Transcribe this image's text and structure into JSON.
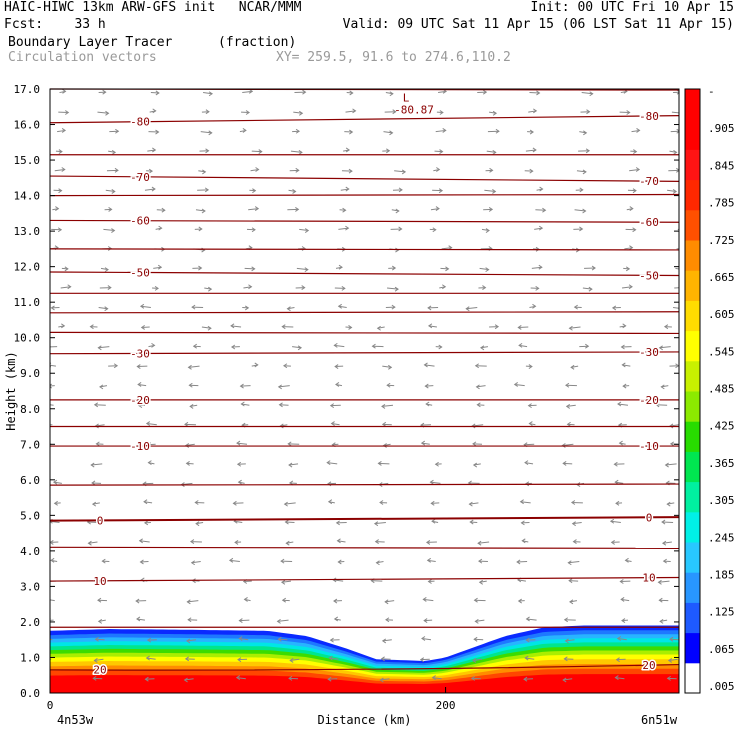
{
  "header": {
    "line1_left": "HAIC-HIWC 13km ARW-GFS init   NCAR/MMM",
    "line1_right": "Init: 00 UTC Fri 10 Apr 15",
    "line2_left": "Fcst:    33 h",
    "line2_right": "Valid: 09 UTC Sat 11 Apr 15 (06 LST Sat 11 Apr 15)",
    "field_name": "Boundary Layer Tracer",
    "field_units": "(fraction)",
    "vector_label": "Circulation vectors",
    "xy_label": "XY= 259.5, 91.6 to 274.6,110.2"
  },
  "chart_data": {
    "type": "cross-section",
    "xlabel": "Distance (km)",
    "ylabel": "Height (km)",
    "xlim": [
      0,
      318
    ],
    "ylim": [
      0,
      17
    ],
    "x_tick_values": [
      0,
      200
    ],
    "x_tick_labels": [
      "0",
      "200"
    ],
    "x_end_labels": [
      "4n53w",
      "6n51w"
    ],
    "y_tick_values": [
      0,
      1,
      2,
      3,
      4,
      5,
      6,
      7,
      8,
      9,
      10,
      11,
      12,
      13,
      14,
      15,
      16,
      17
    ],
    "y_tick_labels": [
      "0.0",
      "1.0",
      "2.0",
      "3.0",
      "4.0",
      "5.0",
      "6.0",
      "7.0",
      "8.0",
      "9.0",
      "10.0",
      "11.0",
      "12.0",
      "13.0",
      "14.0",
      "15.0",
      "16.0",
      "17.0"
    ],
    "tracer_boundary_km": {
      "x": [
        0,
        30,
        70,
        110,
        130,
        150,
        165,
        180,
        190,
        200,
        215,
        230,
        250,
        270,
        290,
        318
      ],
      "top": [
        1.75,
        1.8,
        1.78,
        1.75,
        1.6,
        1.25,
        0.95,
        0.92,
        0.9,
        1.0,
        1.3,
        1.6,
        1.85,
        1.9,
        1.9,
        1.9
      ]
    },
    "temperature_isotherms": [
      {
        "value": -80,
        "label": "-80",
        "y_left": 16.05,
        "y_right": 16.25
      },
      {
        "value": -70,
        "label": "-70",
        "y_left": 14.55,
        "y_right": 14.4
      },
      {
        "value": -60,
        "label": "-60",
        "y_left": 13.3,
        "y_right": 13.25
      },
      {
        "value": -50,
        "label": "-50",
        "y_left": 11.85,
        "y_right": 11.75
      },
      {
        "value": -30,
        "label": "-30",
        "y_left": 9.55,
        "y_right": 9.6
      },
      {
        "value": -20,
        "label": "-20",
        "y_left": 8.25,
        "y_right": 8.25
      },
      {
        "value": -10,
        "label": "-10",
        "y_left": 6.95,
        "y_right": 6.95
      },
      {
        "value": 0,
        "label": "0",
        "y_left": 4.85,
        "y_right": 4.95
      },
      {
        "value": 10,
        "label": "10",
        "y_left": 3.15,
        "y_right": 3.25
      },
      {
        "value": 20,
        "label": "20",
        "y_left": 0.65,
        "y_right": 0.8
      }
    ],
    "unlabeled_isotherms_km": [
      17.0,
      15.15,
      14.0,
      12.5,
      11.25,
      10.7,
      10.15,
      7.5,
      5.85,
      4.1,
      1.85
    ],
    "low_marker": {
      "text": "L",
      "value_text": "-80.87",
      "x": 180,
      "y": 16.65
    },
    "colorbar": {
      "labels": [
        ".005",
        ".065",
        ".125",
        ".185",
        ".245",
        ".305",
        ".365",
        ".425",
        ".485",
        ".545",
        ".605",
        ".665",
        ".725",
        ".785",
        ".845",
        ".905",
        "-"
      ],
      "colors": [
        "#ffffff",
        "#0000ff",
        "#1e5aff",
        "#2896ff",
        "#28c8ff",
        "#00f0e6",
        "#00f0a0",
        "#00e650",
        "#28dc00",
        "#8cea00",
        "#c8f000",
        "#ffff00",
        "#ffdc00",
        "#ffb400",
        "#ff8c00",
        "#ff5000",
        "#ff2800",
        "#ff1414",
        "#ff0000",
        "#ff0000"
      ]
    },
    "colors": {
      "isotherm": "#8b0000",
      "vector": "#888888",
      "frame": "#000000"
    }
  }
}
